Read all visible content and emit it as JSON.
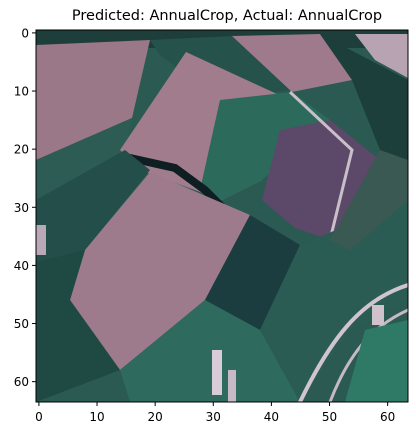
{
  "figure": {
    "title": "Predicted: AnnualCrop, Actual: AnnualCrop"
  },
  "axes": {
    "x_ticks": [
      "0",
      "10",
      "20",
      "30",
      "40",
      "50",
      "60"
    ],
    "y_ticks": [
      "0",
      "10",
      "20",
      "30",
      "40",
      "50",
      "60"
    ],
    "x_range": [
      -0.5,
      63.5
    ],
    "y_range": [
      -0.5,
      63.5
    ]
  },
  "image": {
    "description_colors": {
      "pink_field": "#9c7a8c",
      "pink_field_light": "#b08f9e",
      "dark_green": "#1f4a44",
      "teal_green": "#2f6c5f",
      "purple_field": "#5e4a6a",
      "dark_line": "#0e1e22",
      "light_edge": "#c9bfc9"
    }
  }
}
